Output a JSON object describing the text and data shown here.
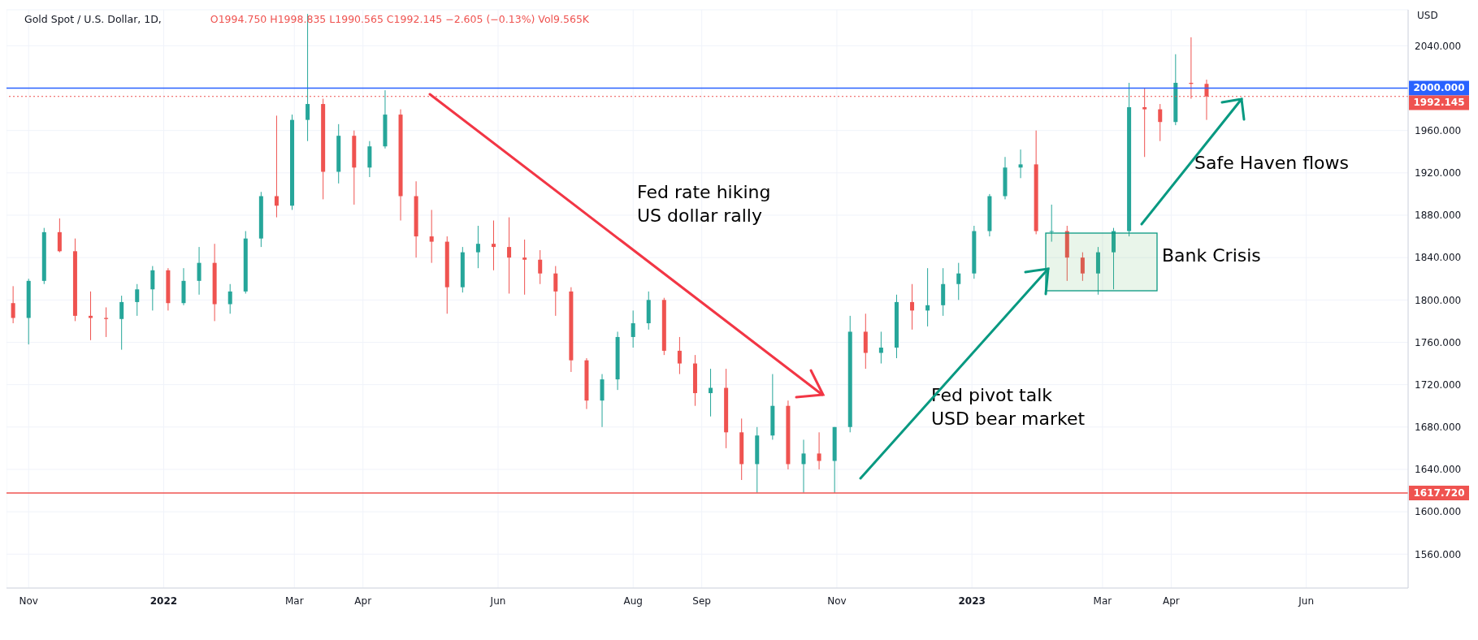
{
  "chart_data": {
    "type": "candlestick",
    "title": "Gold Spot / U.S. Dollar, 1D,",
    "subtitle": "O1994.750 H1998.835 L1990.565 C1992.145 −2.605 (−0.13%) Vol9.565K",
    "ylabel": "USD",
    "x": [
      "2021-10-25",
      "2021-11-01",
      "2021-11-08",
      "2021-11-15",
      "2021-11-22",
      "2021-11-29",
      "2021-12-06",
      "2021-12-13",
      "2021-12-20",
      "2021-12-27",
      "2022-01-03",
      "2022-01-10",
      "2022-01-17",
      "2022-01-24",
      "2022-01-31",
      "2022-02-07",
      "2022-02-14",
      "2022-02-21",
      "2022-02-28",
      "2022-03-07",
      "2022-03-14",
      "2022-03-21",
      "2022-03-28",
      "2022-04-04",
      "2022-04-11",
      "2022-04-18",
      "2022-04-25",
      "2022-05-02",
      "2022-05-09",
      "2022-05-16",
      "2022-05-23",
      "2022-05-30",
      "2022-06-06",
      "2022-06-13",
      "2022-06-20",
      "2022-06-27",
      "2022-07-04",
      "2022-07-11",
      "2022-07-18",
      "2022-07-25",
      "2022-08-01",
      "2022-08-08",
      "2022-08-15",
      "2022-08-22",
      "2022-08-29",
      "2022-09-05",
      "2022-09-12",
      "2022-09-19",
      "2022-09-26",
      "2022-10-03",
      "2022-10-10",
      "2022-10-17",
      "2022-10-24",
      "2022-10-31",
      "2022-11-07",
      "2022-11-14",
      "2022-11-21",
      "2022-11-28",
      "2022-12-05",
      "2022-12-12",
      "2022-12-19",
      "2022-12-26",
      "2023-01-02",
      "2023-01-09",
      "2023-01-16",
      "2023-01-23",
      "2023-01-30",
      "2023-02-06",
      "2023-02-13",
      "2023-02-20",
      "2023-02-27",
      "2023-03-06",
      "2023-03-13",
      "2023-03-20",
      "2023-03-27",
      "2023-04-03",
      "2023-04-10",
      "2023-04-17"
    ],
    "ohlc": [
      [
        1797,
        1813,
        1778,
        1783
      ],
      [
        1783,
        1820,
        1758,
        1818
      ],
      [
        1818,
        1868,
        1815,
        1864
      ],
      [
        1864,
        1877,
        1845,
        1846
      ],
      [
        1846,
        1858,
        1780,
        1785
      ],
      [
        1785,
        1808,
        1762,
        1783
      ],
      [
        1783,
        1793,
        1765,
        1782
      ],
      [
        1782,
        1804,
        1753,
        1798
      ],
      [
        1798,
        1815,
        1785,
        1810
      ],
      [
        1810,
        1832,
        1790,
        1828
      ],
      [
        1828,
        1830,
        1790,
        1797
      ],
      [
        1797,
        1830,
        1795,
        1818
      ],
      [
        1818,
        1850,
        1805,
        1835
      ],
      [
        1835,
        1853,
        1780,
        1796
      ],
      [
        1796,
        1815,
        1787,
        1808
      ],
      [
        1808,
        1865,
        1806,
        1858
      ],
      [
        1858,
        1902,
        1850,
        1898
      ],
      [
        1898,
        1974,
        1878,
        1889
      ],
      [
        1889,
        1975,
        1885,
        1970
      ],
      [
        1970,
        2070,
        1950,
        1985
      ],
      [
        1985,
        1990,
        1895,
        1921
      ],
      [
        1921,
        1966,
        1910,
        1955
      ],
      [
        1955,
        1960,
        1890,
        1925
      ],
      [
        1925,
        1950,
        1916,
        1945
      ],
      [
        1945,
        1998,
        1943,
        1975
      ],
      [
        1975,
        1980,
        1875,
        1898
      ],
      [
        1898,
        1912,
        1840,
        1860
      ],
      [
        1860,
        1885,
        1835,
        1855
      ],
      [
        1855,
        1860,
        1787,
        1812
      ],
      [
        1812,
        1850,
        1807,
        1845
      ],
      [
        1845,
        1870,
        1830,
        1853
      ],
      [
        1853,
        1875,
        1828,
        1850
      ],
      [
        1850,
        1878,
        1806,
        1840
      ],
      [
        1840,
        1857,
        1805,
        1838
      ],
      [
        1838,
        1847,
        1815,
        1825
      ],
      [
        1825,
        1832,
        1785,
        1808
      ],
      [
        1808,
        1812,
        1732,
        1743
      ],
      [
        1743,
        1745,
        1697,
        1705
      ],
      [
        1705,
        1730,
        1680,
        1725
      ],
      [
        1725,
        1770,
        1715,
        1765
      ],
      [
        1765,
        1790,
        1755,
        1778
      ],
      [
        1778,
        1808,
        1772,
        1800
      ],
      [
        1800,
        1802,
        1748,
        1752
      ],
      [
        1752,
        1765,
        1730,
        1740
      ],
      [
        1740,
        1748,
        1700,
        1712
      ],
      [
        1712,
        1735,
        1690,
        1717
      ],
      [
        1717,
        1735,
        1660,
        1675
      ],
      [
        1675,
        1688,
        1630,
        1645
      ],
      [
        1645,
        1680,
        1618,
        1672
      ],
      [
        1672,
        1730,
        1668,
        1700
      ],
      [
        1700,
        1705,
        1640,
        1645
      ],
      [
        1645,
        1668,
        1618,
        1655
      ],
      [
        1655,
        1675,
        1640,
        1648
      ],
      [
        1648,
        1680,
        1617.72,
        1680
      ],
      [
        1680,
        1785,
        1675,
        1770
      ],
      [
        1770,
        1787,
        1735,
        1750
      ],
      [
        1750,
        1770,
        1740,
        1755
      ],
      [
        1755,
        1805,
        1745,
        1798
      ],
      [
        1798,
        1815,
        1772,
        1790
      ],
      [
        1790,
        1830,
        1775,
        1795
      ],
      [
        1795,
        1830,
        1785,
        1815
      ],
      [
        1815,
        1835,
        1800,
        1825
      ],
      [
        1825,
        1870,
        1820,
        1865
      ],
      [
        1865,
        1900,
        1860,
        1898
      ],
      [
        1898,
        1935,
        1895,
        1925
      ],
      [
        1925,
        1942,
        1915,
        1928
      ],
      [
        1928,
        1960,
        1862,
        1865
      ],
      [
        1865,
        1890,
        1855,
        1865
      ],
      [
        1865,
        1870,
        1818,
        1840
      ],
      [
        1840,
        1845,
        1818,
        1825
      ],
      [
        1825,
        1850,
        1805,
        1845
      ],
      [
        1845,
        1868,
        1810,
        1865
      ],
      [
        1865,
        2005,
        1860,
        1982
      ],
      [
        1982,
        2000,
        1935,
        1980
      ],
      [
        1980,
        1985,
        1950,
        1968
      ],
      [
        1968,
        2032,
        1965,
        2005
      ],
      [
        2005,
        2048,
        1990,
        2004
      ],
      [
        2004,
        2008,
        1970,
        1992.145
      ]
    ],
    "colors": [
      "#ef5350",
      "#26a69a",
      "#26a69a",
      "#ef5350",
      "#ef5350",
      "#ef5350",
      "#ef5350",
      "#26a69a",
      "#26a69a",
      "#26a69a",
      "#ef5350",
      "#26a69a",
      "#26a69a",
      "#ef5350",
      "#26a69a",
      "#26a69a",
      "#26a69a",
      "#ef5350",
      "#26a69a",
      "#26a69a",
      "#ef5350",
      "#26a69a",
      "#ef5350",
      "#26a69a",
      "#26a69a",
      "#ef5350",
      "#ef5350",
      "#ef5350",
      "#ef5350",
      "#26a69a",
      "#26a69a",
      "#ef5350",
      "#ef5350",
      "#ef5350",
      "#ef5350",
      "#ef5350",
      "#ef5350",
      "#ef5350",
      "#26a69a",
      "#26a69a",
      "#26a69a",
      "#26a69a",
      "#ef5350",
      "#ef5350",
      "#ef5350",
      "#26a69a",
      "#ef5350",
      "#ef5350",
      "#26a69a",
      "#26a69a",
      "#ef5350",
      "#26a69a",
      "#ef5350",
      "#26a69a",
      "#26a69a",
      "#ef5350",
      "#26a69a",
      "#26a69a",
      "#ef5350",
      "#26a69a",
      "#26a69a",
      "#26a69a",
      "#26a69a",
      "#26a69a",
      "#26a69a",
      "#26a69a",
      "#ef5350",
      "#26a69a",
      "#ef5350",
      "#ef5350",
      "#26a69a",
      "#26a69a",
      "#26a69a",
      "#ef5350",
      "#ef5350",
      "#26a69a",
      "#ef5350",
      "#ef5350"
    ],
    "xlim": [
      "2021-10-22",
      "2023-07-17"
    ],
    "xticks": [
      {
        "value": "2021-11-01",
        "label": "Nov"
      },
      {
        "value": "2022-01-01",
        "label": "2022"
      },
      {
        "value": "2022-03-01",
        "label": "Mar"
      },
      {
        "value": "2022-04-01",
        "label": "Apr"
      },
      {
        "value": "2022-06-01",
        "label": "Jun"
      },
      {
        "value": "2022-08-01",
        "label": "Aug"
      },
      {
        "value": "2022-09-01",
        "label": "Sep"
      },
      {
        "value": "2022-11-01",
        "label": "Nov"
      },
      {
        "value": "2023-01-01",
        "label": "2023"
      },
      {
        "value": "2023-03-01",
        "label": "Mar"
      },
      {
        "value": "2023-04-01",
        "label": "Apr"
      },
      {
        "value": "2023-06-01",
        "label": "Jun"
      }
    ],
    "ylim": [
      1528,
      2074
    ],
    "yticks": [
      {
        "value": 1560,
        "label": "1560.000"
      },
      {
        "value": 1600,
        "label": "1600.000"
      },
      {
        "value": 1640,
        "label": "1640.000"
      },
      {
        "value": 1680,
        "label": "1680.000"
      },
      {
        "value": 1720,
        "label": "1720.000"
      },
      {
        "value": 1760,
        "label": "1760.000"
      },
      {
        "value": 1800,
        "label": "1800.000"
      },
      {
        "value": 1840,
        "label": "1840.000"
      },
      {
        "value": 1880,
        "label": "1880.000"
      },
      {
        "value": 1920,
        "label": "1920.000"
      },
      {
        "value": 1960,
        "label": "1960.000"
      },
      {
        "value": 2000,
        "label": null
      },
      {
        "value": 2040,
        "label": "2040.000"
      }
    ],
    "grid": true,
    "ref_lines": [
      {
        "axis": "y",
        "value": 2000,
        "label": "2000.000",
        "color": "#2962ff",
        "line_style": "solid"
      },
      {
        "axis": "y",
        "value": 1992.145,
        "label": "1992.145",
        "color": "#ef5350",
        "line_style": "dotted"
      },
      {
        "axis": "y",
        "value": 1617.72,
        "label": "1617.720",
        "color": "#ef5350",
        "line_style": "solid"
      }
    ],
    "annotations": [
      "Fed rate hiking\nUS dollar rally",
      "Fed pivot talk\nUSD bear market",
      "Bank Crisis",
      "Safe Haven flows"
    ]
  }
}
